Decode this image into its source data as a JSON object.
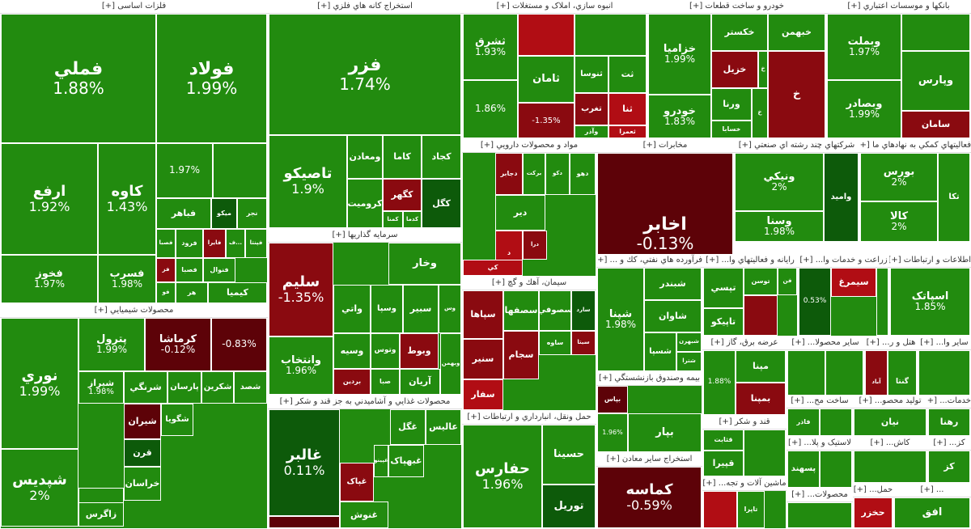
{
  "colors": {
    "up": "#228b0f",
    "up_dark": "#0d5a0a",
    "down": "#b10d14",
    "down_dark": "#5d0208"
  },
  "sectors": [
    {
      "id": "s1",
      "title": "فلزات اساسی [+]",
      "cells": [
        {
          "s": "فملي",
          "c": "1.88%",
          "t": "g"
        },
        {
          "s": "فولاد",
          "c": "1.99%",
          "t": "g"
        },
        {
          "s": "ارفع",
          "c": "1.92%",
          "t": "g"
        },
        {
          "s": "کاوه",
          "c": "1.43%",
          "t": "g"
        },
        {
          "s": "",
          "c": "1.97%",
          "t": "g"
        },
        {
          "s": "",
          "c": "",
          "t": "g"
        },
        {
          "s": "فخوز",
          "c": "1.97%",
          "t": "g"
        },
        {
          "s": "فسرب",
          "c": "1.98%",
          "t": "g"
        },
        {
          "s": "فباهر",
          "c": "",
          "t": "g"
        },
        {
          "s": "ميکو",
          "c": "",
          "t": "dg"
        },
        {
          "s": "نجر",
          "c": "",
          "t": "g"
        },
        {
          "s": "فصبا",
          "c": "",
          "t": "g"
        },
        {
          "s": "فرود",
          "c": "",
          "t": "g"
        },
        {
          "s": "فايرا",
          "c": "",
          "t": "mr"
        },
        {
          "s": "ف...",
          "c": "",
          "t": "g"
        },
        {
          "s": "فپنتا",
          "c": "",
          "t": "g"
        },
        {
          "s": "فنوال",
          "c": "",
          "t": "g"
        },
        {
          "s": "فصبا",
          "c": "",
          "t": "g"
        },
        {
          "s": "فز",
          "c": "",
          "t": "mr"
        },
        {
          "s": "هر",
          "c": "",
          "t": "g"
        },
        {
          "s": "فو",
          "c": "",
          "t": "g"
        },
        {
          "s": "کيميا",
          "c": "",
          "t": "g"
        }
      ]
    },
    {
      "id": "s2",
      "title": "استخراج کانه هاي فلزي [+]",
      "cells": [
        {
          "s": "فزر",
          "c": "1.74%",
          "t": "g"
        },
        {
          "s": "تاصيکو",
          "c": "1.9%",
          "t": "g"
        },
        {
          "s": "ومعادن",
          "c": "",
          "t": "g"
        },
        {
          "s": "کاما",
          "c": "",
          "t": "g"
        },
        {
          "s": "کجاد",
          "c": "",
          "t": "g"
        },
        {
          "s": "کگهر",
          "c": "",
          "t": "mr"
        },
        {
          "s": "کگل",
          "c": "",
          "t": "dg"
        },
        {
          "s": "کروميت",
          "c": "",
          "t": "g"
        },
        {
          "s": "کمنا",
          "c": "",
          "t": "g"
        },
        {
          "s": "کدما",
          "c": "",
          "t": "g"
        }
      ]
    },
    {
      "id": "s3",
      "title": "انبوه سازي، املاک و مستغلات [+]",
      "cells": [
        {
          "s": "ثشرق",
          "c": "1.93%",
          "t": "g"
        },
        {
          "s": "",
          "c": "",
          "t": "r"
        },
        {
          "s": "",
          "c": "",
          "t": "g"
        },
        {
          "s": "ثامان",
          "c": "",
          "t": "g"
        },
        {
          "s": "ثنوسا",
          "c": "",
          "t": "g"
        },
        {
          "s": "تغرب",
          "c": "",
          "t": "mr"
        },
        {
          "s": "ثت",
          "c": "",
          "t": "g"
        },
        {
          "s": "ثنا",
          "c": "",
          "t": "r"
        },
        {
          "s": "",
          "c": "1.86%",
          "t": "g"
        },
        {
          "s": "",
          "c": "-1.35%",
          "t": "mr"
        },
        {
          "s": "وآذر",
          "c": "",
          "t": "g"
        },
        {
          "s": "ثعمرا",
          "c": "",
          "t": "r"
        }
      ]
    },
    {
      "id": "s4",
      "title": "خودرو و ساخت قطعات [+]",
      "cells": [
        {
          "s": "خزاميا",
          "c": "1.99%",
          "t": "g"
        },
        {
          "s": "خکستر",
          "c": "",
          "t": "g"
        },
        {
          "s": "خبهمن",
          "c": "",
          "t": "g"
        },
        {
          "s": "خزيل",
          "c": "",
          "t": "mr"
        },
        {
          "s": "خ",
          "c": "",
          "t": "g"
        },
        {
          "s": "ورنا",
          "c": "",
          "t": "g"
        },
        {
          "s": "خ",
          "c": "",
          "t": "g"
        },
        {
          "s": "خودرو",
          "c": "1.83%",
          "t": "g"
        },
        {
          "s": "خسابا",
          "c": "",
          "t": "g"
        },
        {
          "s": "خ",
          "c": "",
          "t": "mr"
        }
      ]
    },
    {
      "id": "s5",
      "title": "بانکها و موسسات اعتباري [+]",
      "cells": [
        {
          "s": "وبملت",
          "c": "1.97%",
          "t": "g"
        },
        {
          "s": "",
          "c": "",
          "t": "g"
        },
        {
          "s": "وپارس",
          "c": "",
          "t": "g"
        },
        {
          "s": "وبصادر",
          "c": "1.99%",
          "t": "g"
        },
        {
          "s": "سامان",
          "c": "",
          "t": "mr"
        },
        {
          "s": "",
          "c": "",
          "t": "g"
        }
      ]
    },
    {
      "id": "s6",
      "title": "مواد و محصولات دارويي [+]",
      "cells": [
        {
          "s": "دجابر",
          "c": "",
          "t": "mr"
        },
        {
          "s": "برکت",
          "c": "",
          "t": "g"
        },
        {
          "s": "دکو",
          "c": "",
          "t": "g"
        },
        {
          "s": "دهو",
          "c": "",
          "t": "g"
        },
        {
          "s": "دير",
          "c": "",
          "t": "g"
        },
        {
          "s": "درا",
          "c": "",
          "t": "mr"
        },
        {
          "s": "د",
          "c": "",
          "t": "r"
        },
        {
          "s": "کي",
          "c": "",
          "t": "r"
        }
      ]
    },
    {
      "id": "s7",
      "title": "مخابرات [+]",
      "cells": [
        {
          "s": "اخابر",
          "c": "-0.13%",
          "t": "dr"
        }
      ]
    },
    {
      "id": "s8",
      "title": "شرکتهاي چند رشته اي صنعتي [+]",
      "cells": [
        {
          "s": "ونيکي",
          "c": "2%",
          "t": "g"
        },
        {
          "s": "وسنا",
          "c": "1.98%",
          "t": "g"
        },
        {
          "s": "واميد",
          "c": "",
          "t": "dg"
        }
      ]
    },
    {
      "id": "s9",
      "title": "فعاليتهاي کمکي به نهادهاي ما [+]",
      "cells": [
        {
          "s": "بورس",
          "c": "2%",
          "t": "g"
        },
        {
          "s": "تکا",
          "c": "",
          "t": "g"
        },
        {
          "s": "کالا",
          "c": "2%",
          "t": "g"
        }
      ]
    },
    {
      "id": "s10",
      "title": "سرمايه گذاريها [+]",
      "cells": [
        {
          "s": "سليم",
          "c": "-1.35%",
          "t": "mr"
        },
        {
          "s": "وخار",
          "c": "",
          "t": "g"
        },
        {
          "s": "واتي",
          "c": "",
          "t": "g"
        },
        {
          "s": "وسپا",
          "c": "",
          "t": "g"
        },
        {
          "s": "سبير",
          "c": "",
          "t": "g"
        },
        {
          "s": "وس",
          "c": "",
          "t": "g"
        },
        {
          "s": "وانتخاب",
          "c": "1.96%",
          "t": "g"
        },
        {
          "s": "وسيه",
          "c": "",
          "t": "g"
        },
        {
          "s": "وتوس",
          "c": "",
          "t": "g"
        },
        {
          "s": "وبوط",
          "c": "",
          "t": "mr"
        },
        {
          "s": "آريان",
          "c": "",
          "t": "g"
        },
        {
          "s": "بردين",
          "c": "",
          "t": "mr"
        },
        {
          "s": "صبا",
          "c": "",
          "t": "g"
        },
        {
          "s": "وبهمن",
          "c": "",
          "t": "g"
        }
      ]
    },
    {
      "id": "s11",
      "title": "سيمان، آهك و گچ [+]",
      "cells": [
        {
          "s": "سپاها",
          "c": "",
          "t": "mr"
        },
        {
          "s": "سصفها",
          "c": "",
          "t": "g"
        },
        {
          "s": "سصوفي",
          "c": "",
          "t": "g"
        },
        {
          "s": "سارد",
          "c": "",
          "t": "dg"
        },
        {
          "s": "سنير",
          "c": "",
          "t": "mr"
        },
        {
          "s": "ساوه",
          "c": "",
          "t": "g"
        },
        {
          "s": "سجام",
          "c": "",
          "t": "mr"
        },
        {
          "s": "سيتا",
          "c": "",
          "t": "mr"
        },
        {
          "s": "سفار",
          "c": "",
          "t": "r"
        },
        {
          "s": "سشرق",
          "c": "",
          "t": "g"
        }
      ]
    },
    {
      "id": "s12",
      "title": "فرآورده هاي نفتي، كك و ... [+]",
      "cells": [
        {
          "s": "شپنا",
          "c": "1.98%",
          "t": "g"
        },
        {
          "s": "شبندر",
          "c": "",
          "t": "g"
        },
        {
          "s": "شاوان",
          "c": "",
          "t": "g"
        },
        {
          "s": "شسپا",
          "c": "",
          "t": "g"
        },
        {
          "s": "شبهرن",
          "c": "",
          "t": "g"
        },
        {
          "s": "شترا",
          "c": "",
          "t": "g"
        },
        {
          "s": "شراز",
          "c": "",
          "t": "g"
        }
      ]
    },
    {
      "id": "s13",
      "title": "رايانه و فعاليتهاي وا... [+]",
      "cells": [
        {
          "s": "تپسي",
          "c": "",
          "t": "g"
        },
        {
          "s": "توسن",
          "c": "",
          "t": "g"
        },
        {
          "s": "فن",
          "c": "",
          "t": "g"
        },
        {
          "s": "تاپيکو",
          "c": "",
          "t": "g"
        },
        {
          "s": "",
          "c": "",
          "t": "mr"
        }
      ]
    },
    {
      "id": "s14",
      "title": "زراعت و خدمات وا... [+]",
      "cells": [
        {
          "s": "",
          "c": "0.53%",
          "t": "dg"
        },
        {
          "s": "سيمرغ",
          "c": "",
          "t": "r"
        },
        {
          "s": "",
          "c": "",
          "t": "g"
        }
      ]
    },
    {
      "id": "s15",
      "title": "اطلاعات و ارتباطات [+]",
      "cells": [
        {
          "s": "اسپاتک",
          "c": "1.85%",
          "t": "g"
        },
        {
          "s": "",
          "c": "",
          "t": "g"
        }
      ]
    },
    {
      "id": "s16",
      "title": "محصولات شيميايي [+]",
      "cells": [
        {
          "s": "نوري",
          "c": "1.99%",
          "t": "g"
        },
        {
          "s": "پترول",
          "c": "1.99%",
          "t": "g"
        },
        {
          "s": "کرماشا",
          "c": "-0.12%",
          "t": "dr"
        },
        {
          "s": "",
          "c": "-0.83%",
          "t": "dr"
        },
        {
          "s": "شيراز",
          "c": "1.98%",
          "t": "g"
        },
        {
          "s": "شرنگي",
          "c": "",
          "t": "g"
        },
        {
          "s": "پارسان",
          "c": "",
          "t": "g"
        },
        {
          "s": "شکرين",
          "c": "",
          "t": "g"
        },
        {
          "s": "شصد",
          "c": "",
          "t": "g"
        },
        {
          "s": "شپديس",
          "c": "2%",
          "t": "g"
        },
        {
          "s": "شيران",
          "c": "",
          "t": "dr"
        },
        {
          "s": "قرن",
          "c": "",
          "t": "dg"
        },
        {
          "s": "شگويا",
          "c": "",
          "t": "g"
        },
        {
          "s": "شاملا",
          "c": "",
          "t": "g"
        },
        {
          "s": "خراسان",
          "c": "",
          "t": "g"
        },
        {
          "s": "زاگرس",
          "c": "",
          "t": "g"
        }
      ]
    },
    {
      "id": "s17",
      "title": "محصولات غذايي و آشاميدني به جز قند و شکر [+]",
      "cells": [
        {
          "s": "غالبر",
          "c": "0.11%",
          "t": "dg"
        },
        {
          "s": "عاليس",
          "c": "",
          "t": "g"
        },
        {
          "s": "غگل",
          "c": "",
          "t": "g"
        },
        {
          "s": "غبهپاک",
          "c": "",
          "t": "g"
        },
        {
          "s": "غپينو",
          "c": "",
          "t": "g"
        },
        {
          "s": "غپاک",
          "c": "",
          "t": "mr"
        },
        {
          "s": "غنوش",
          "c": "",
          "t": "g"
        },
        {
          "s": "",
          "c": "",
          "t": "dr"
        }
      ]
    },
    {
      "id": "s18",
      "title": "حمل ونقل، انبارداري و ارتباطات [+]",
      "cells": [
        {
          "s": "حفارس",
          "c": "1.96%",
          "t": "g"
        },
        {
          "s": "حسينا",
          "c": "",
          "t": "g"
        },
        {
          "s": "توريل",
          "c": "",
          "t": "dg"
        }
      ]
    },
    {
      "id": "s19",
      "title": "بيمه وصندوق بازنشستگي [+]",
      "cells": [
        {
          "s": "بپاس",
          "c": "",
          "t": "dr"
        },
        {
          "s": "",
          "c": "1.96%",
          "t": "g"
        },
        {
          "s": "بپار",
          "c": "",
          "t": "g"
        }
      ]
    },
    {
      "id": "s20",
      "title": "استخراج ساير معادن [+]",
      "cells": [
        {
          "s": "کماسه",
          "c": "-0.59%",
          "t": "dr"
        }
      ]
    },
    {
      "id": "s21",
      "title": "عرضه برق، گاز [+]",
      "cells": [
        {
          "s": "",
          "c": "1.88%",
          "t": "g"
        },
        {
          "s": "مپنا",
          "c": "",
          "t": "g"
        },
        {
          "s": "بمپنا",
          "c": "",
          "t": "mr"
        }
      ]
    },
    {
      "id": "s22",
      "title": "ساير محصولا... [+]",
      "cells": [
        {
          "s": "",
          "c": "",
          "t": "g"
        },
        {
          "s": "",
          "c": "",
          "t": "g"
        }
      ]
    },
    {
      "id": "s23",
      "title": "هتل و ر... [+]",
      "cells": [
        {
          "s": "آباد",
          "c": "",
          "t": "mr"
        },
        {
          "s": "گنتا",
          "c": "",
          "t": "g"
        }
      ]
    },
    {
      "id": "s24",
      "title": "ساير وا... [+]",
      "cells": [
        {
          "s": "",
          "c": "",
          "t": "g"
        }
      ]
    },
    {
      "id": "s25",
      "title": "ساخت مح... [+]",
      "cells": [
        {
          "s": "فاذر",
          "c": "",
          "t": "g"
        },
        {
          "s": "",
          "c": "",
          "t": "g"
        }
      ]
    },
    {
      "id": "s26",
      "title": "توليد محصو... [+]",
      "cells": [
        {
          "s": "نيان",
          "c": "",
          "t": "g"
        }
      ]
    },
    {
      "id": "s27",
      "title": "خدمات... [+]",
      "cells": [
        {
          "s": "رهنا",
          "c": "",
          "t": "g"
        }
      ]
    },
    {
      "id": "s28",
      "title": "قند و شکر [+]",
      "cells": [
        {
          "s": "قثابت",
          "c": "",
          "t": "g"
        },
        {
          "s": "قپيرا",
          "c": "",
          "t": "g"
        },
        {
          "s": "",
          "c": "",
          "t": "g"
        }
      ]
    },
    {
      "id": "s29",
      "title": "لاستيک و پلا... [+]",
      "cells": [
        {
          "s": "پسهند",
          "c": "",
          "t": "g"
        },
        {
          "s": "",
          "c": "",
          "t": "g"
        }
      ]
    },
    {
      "id": "s30",
      "title": "کاش... [+]",
      "cells": [
        {
          "s": "",
          "c": "",
          "t": "g"
        }
      ]
    },
    {
      "id": "s31",
      "title": "کز... [+]",
      "cells": [
        {
          "s": "کز",
          "c": "",
          "t": "g"
        }
      ]
    },
    {
      "id": "s32",
      "title": "ماشين آلات و تجه... [+]",
      "cells": [
        {
          "s": "تاپرا",
          "c": "",
          "t": "g"
        },
        {
          "s": "",
          "c": "",
          "t": "r"
        }
      ]
    },
    {
      "id": "s33",
      "title": "محصولات... [+]",
      "cells": [
        {
          "s": "",
          "c": "",
          "t": "g"
        }
      ]
    },
    {
      "id": "s34",
      "title": "حمل... [+]",
      "cells": [
        {
          "s": "حخزر",
          "c": "",
          "t": "r"
        },
        {
          "s": "",
          "c": "",
          "t": "g"
        }
      ]
    },
    {
      "id": "s35",
      "title": "... [+]",
      "cells": [
        {
          "s": "افق",
          "c": "",
          "t": "g"
        }
      ]
    }
  ]
}
